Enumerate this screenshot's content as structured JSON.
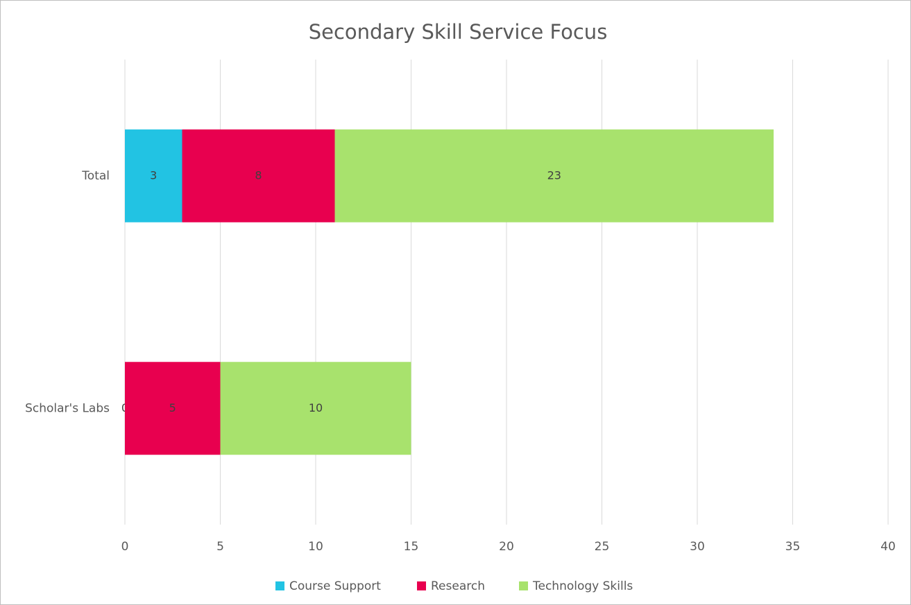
{
  "chart_data": {
    "type": "stacked-barh",
    "title": "Secondary Skill Service Focus",
    "categories": [
      "Total",
      "Scholar's Labs"
    ],
    "series": [
      {
        "name": "Course Support",
        "color": "#22c3e3",
        "values": [
          3,
          0
        ]
      },
      {
        "name": "Research",
        "color": "#e8004f",
        "values": [
          8,
          5
        ]
      },
      {
        "name": "Technology Skills",
        "color": "#a8e26d",
        "values": [
          23,
          10
        ]
      }
    ],
    "xlim": [
      0,
      40
    ],
    "xticks": [
      0,
      5,
      10,
      15,
      20,
      25,
      30,
      35,
      40
    ],
    "grid": true,
    "legend": "bottom"
  }
}
